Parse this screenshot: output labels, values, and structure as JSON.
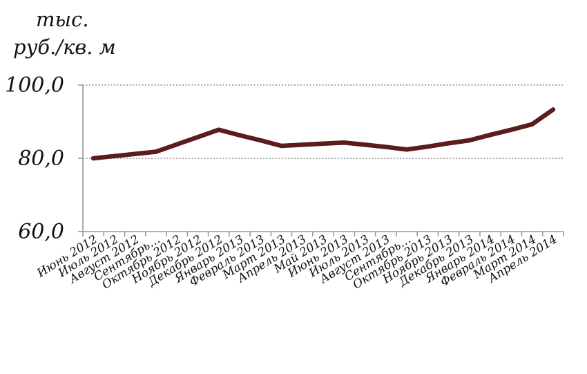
{
  "chart_data": {
    "type": "line",
    "title": "",
    "xlabel": "",
    "ylabel_line1": "тыс.",
    "ylabel_line2": "руб./кв. м",
    "ylim": [
      60,
      100
    ],
    "yticks": [
      60,
      80,
      100
    ],
    "ytick_labels": [
      "60,0",
      "80,0",
      "100,0"
    ],
    "grid": "horizontal dotted",
    "legend": "none",
    "line_color": "#5a1c1c",
    "grid_color": "#8c8c8c",
    "categories": [
      "Июнь 2012",
      "Июль 2012",
      "Август 2012",
      "Сентябрь…",
      "Октябрь 2012",
      "Ноябрь 2012",
      "Декабрь 2012",
      "Январь 2013",
      "Февраль 2013",
      "Март 2013",
      "Апрель 2013",
      "Май 2013",
      "Июнь 2013",
      "Июль 2013",
      "Август 2013",
      "Сентябрь…",
      "Октябрь 2013",
      "Ноябрь 2013",
      "Декабрь 2013",
      "Январь 2014",
      "Февраль 2014",
      "Март 2014",
      "Апрель 2014"
    ],
    "series": [
      {
        "values": [
          80.0,
          80.6,
          81.2,
          81.8,
          83.8,
          85.8,
          87.8,
          86.3,
          84.9,
          83.4,
          83.7,
          84.0,
          84.3,
          83.7,
          83.1,
          82.4,
          83.2,
          84.1,
          84.9,
          86.4,
          87.8,
          89.3,
          93.3
        ]
      }
    ]
  }
}
